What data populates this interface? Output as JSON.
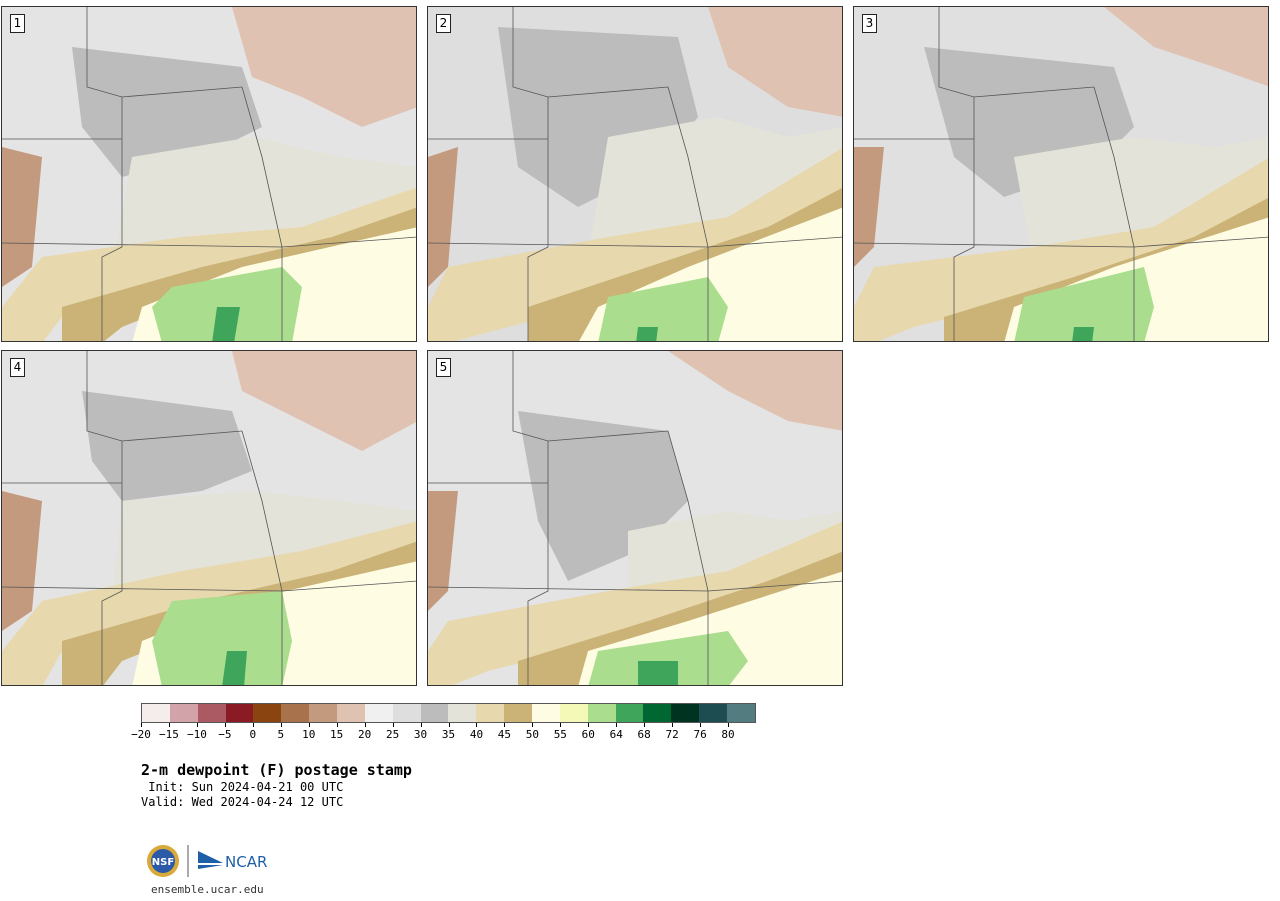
{
  "panels": [
    {
      "label": "1"
    },
    {
      "label": "2"
    },
    {
      "label": "3"
    },
    {
      "label": "4"
    },
    {
      "label": "5"
    }
  ],
  "colorbar": {
    "colors": [
      "#f5ecec",
      "#d3a3aa",
      "#ab5a63",
      "#8a1a23",
      "#8a4410",
      "#a8724d",
      "#c49a7e",
      "#dfc2b1",
      "#f0f0f0",
      "#dedede",
      "#bcbcbc",
      "#e4e3d9",
      "#e7d8ae",
      "#cbb377",
      "#fefde4",
      "#f4f9b8",
      "#aadd8e",
      "#3ea55a",
      "#006632",
      "#003320",
      "#1d4d51",
      "#537c80"
    ],
    "tick_labels": [
      "−20",
      "−15",
      "−10",
      "−5",
      "0",
      "5",
      "10",
      "15",
      "20",
      "25",
      "30",
      "35",
      "40",
      "45",
      "50",
      "55",
      "60",
      "64",
      "68",
      "72",
      "76",
      "80"
    ]
  },
  "product": {
    "title": "2-m dewpoint (F) postage stamp",
    "init": " Init: Sun 2024-04-21 00 UTC",
    "valid": "Valid: Wed 2024-04-24 12 UTC"
  },
  "footer": {
    "site": "ensemble.ucar.edu",
    "logo_text": "NCAR",
    "nsf_text": "NSF"
  }
}
